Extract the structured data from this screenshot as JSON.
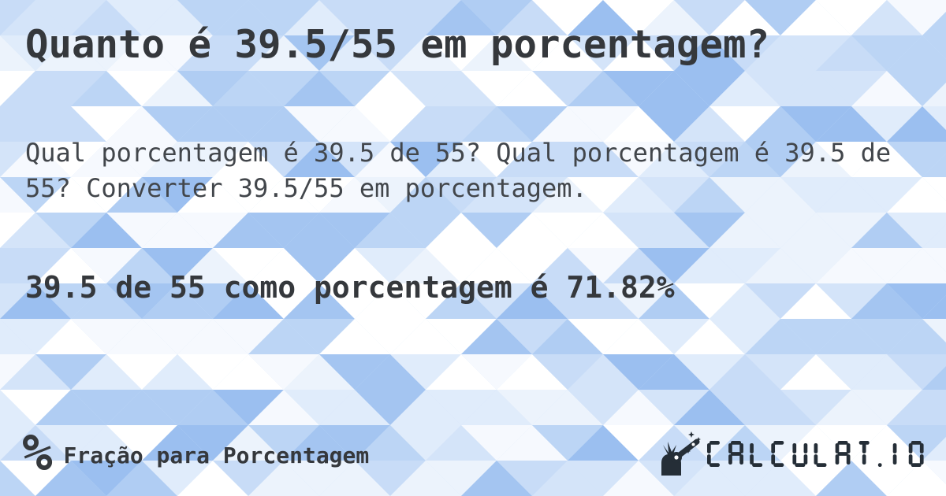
{
  "page": {
    "title": "Quanto é 39.5/55 em porcentagem?",
    "description": "Qual porcentagem é 39.5 de 55? Qual porcentagem é 39.5 de 55? Converter 39.5/55 em porcentagem.",
    "result": "39.5 de 55 como porcentagem é 71.82%"
  },
  "footer": {
    "category": {
      "icon": "percent-icon",
      "icon_glyph": "%",
      "label": "Fração para Porcentagem"
    },
    "brand": {
      "icon": "magic-wand-hand-icon",
      "wordmark": "CALCULAT.IO"
    }
  },
  "colors": {
    "heading_text": "#35383c",
    "body_text": "#42464b",
    "logo_dark": "#252e37",
    "background_base": "#cfe2f8",
    "background_palette": [
      "#ffffff",
      "#f6f9fe",
      "#ecf3fc",
      "#e0ecfb",
      "#d4e4f9",
      "#c8dcf7",
      "#bcd5f5",
      "#b0cdf3",
      "#a4c5f1",
      "#9bbff0"
    ]
  }
}
